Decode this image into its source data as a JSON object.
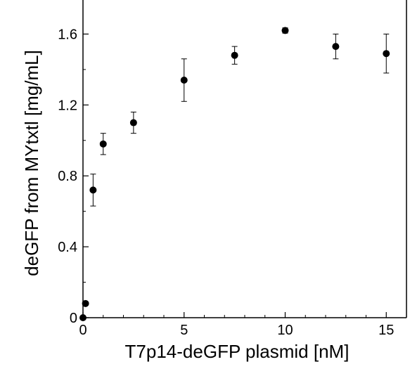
{
  "chart_data": {
    "type": "scatter",
    "title": "",
    "xlabel": "T7p14-deGFP plasmid [nM]",
    "ylabel": "deGFP from MYtxtl [mg/mL]",
    "xlim": [
      0,
      16
    ],
    "ylim": [
      0,
      1.8
    ],
    "xticks": [
      0,
      5,
      10,
      15
    ],
    "xtick_labels": [
      "0",
      "5",
      "10",
      "15"
    ],
    "yticks": [
      0,
      0.4,
      0.8,
      1.2,
      1.6
    ],
    "ytick_labels": [
      "0",
      "0.4",
      "0.8",
      "1.2",
      "1.6"
    ],
    "grid": false,
    "legend": "none",
    "marker_color": "#000000",
    "series": [
      {
        "x": [
          0,
          0.125,
          0.5,
          1,
          2.5,
          5,
          7.5,
          10,
          12.5,
          15
        ],
        "y": [
          0.0,
          0.08,
          0.72,
          0.98,
          1.1,
          1.34,
          1.48,
          1.62,
          1.53,
          1.49
        ],
        "yerr": [
          0.0,
          0.0,
          0.09,
          0.06,
          0.06,
          0.12,
          0.05,
          0.015,
          0.07,
          0.11
        ]
      }
    ]
  }
}
